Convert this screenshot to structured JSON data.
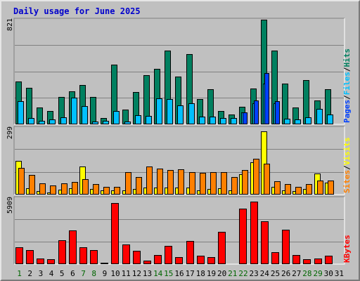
{
  "colors": {
    "title": "#0000cc",
    "visits_day": "#ffff00",
    "weekend_day": "#006600",
    "hits": "#008060",
    "files": "#00c0ff",
    "pages": "#0040ff",
    "visits": "#ffff00",
    "sites": "#ff8000",
    "kbytes": "#ff0000"
  },
  "chart_data": {
    "type": "bar",
    "title": "Daily usage for June 2025",
    "categories": [
      "1",
      "2",
      "3",
      "4",
      "5",
      "6",
      "7",
      "8",
      "9",
      "10",
      "11",
      "12",
      "13",
      "14",
      "15",
      "16",
      "17",
      "18",
      "19",
      "20",
      "21",
      "22",
      "23",
      "24",
      "25",
      "26",
      "27",
      "28",
      "29",
      "30",
      "31"
    ],
    "weekend_days": [
      "1",
      "7",
      "8",
      "14",
      "15",
      "21",
      "22",
      "28",
      "29"
    ],
    "panels": [
      {
        "id": "hits_files_pages",
        "ymax": 821,
        "ymax_label": "821",
        "legend": [
          "Pages",
          "Files",
          "Hits"
        ],
        "series": [
          {
            "name": "Hits",
            "values": [
              336,
              288,
              130,
              102,
              216,
              258,
              308,
              216,
              52,
              468,
              114,
              252,
              384,
              438,
              580,
              372,
              550,
              198,
              276,
              102,
              78,
              138,
              280,
              821,
              576,
              318,
              130,
              348,
              186,
              276,
              0
            ]
          },
          {
            "name": "Files",
            "values": [
              180,
              48,
              28,
              36,
              54,
              210,
              144,
              24,
              30,
              102,
              24,
              72,
              66,
              204,
              198,
              150,
              168,
              60,
              60,
              48,
              48,
              96,
              168,
              318,
              168,
              42,
              36,
              54,
              120,
              78,
              0
            ]
          },
          {
            "name": "Pages",
            "values": [
              4,
              3,
              2,
              2,
              3,
              5,
              4,
              3,
              2,
              8,
              2,
              4,
              5,
              6,
              7,
              6,
              7,
              3,
              4,
              3,
              2,
              92,
              190,
              400,
              180,
              3,
              2,
              3,
              4,
              4,
              0
            ]
          }
        ]
      },
      {
        "id": "visits_sites",
        "ymax": 299,
        "ymax_label": "299",
        "legend": [
          "Sites",
          "Visits"
        ],
        "series": [
          {
            "name": "Visits",
            "values": [
              150,
              28,
              16,
              10,
              22,
              28,
              126,
              25,
              18,
              18,
              20,
              24,
              30,
              30,
              30,
              32,
              32,
              20,
              24,
              28,
              18,
              90,
              145,
              282,
              35,
              18,
              16,
              24,
              95,
              52,
              0
            ]
          },
          {
            "name": "Sites",
            "values": [
              120,
              88,
              50,
              42,
              50,
              58,
              68,
              46,
              36,
              36,
              100,
              80,
              127,
              115,
              110,
              112,
              100,
              98,
              100,
              100,
              80,
              110,
              162,
              138,
              60,
              46,
              36,
              46,
              62,
              62,
              0
            ]
          }
        ]
      },
      {
        "id": "kbytes",
        "ymax": 5909,
        "ymax_label": "5909",
        "legend": [
          "KBytes"
        ],
        "series": [
          {
            "name": "KBytes",
            "values": [
              1520,
              1240,
              500,
              420,
              2160,
              3000,
              1520,
              1280,
              120,
              5500,
              1780,
              1180,
              320,
              800,
              1640,
              660,
              2100,
              780,
              620,
              2900,
              40,
              4940,
              5600,
              3820,
              1040,
              3080,
              840,
              440,
              500,
              740,
              0
            ]
          }
        ]
      }
    ]
  }
}
